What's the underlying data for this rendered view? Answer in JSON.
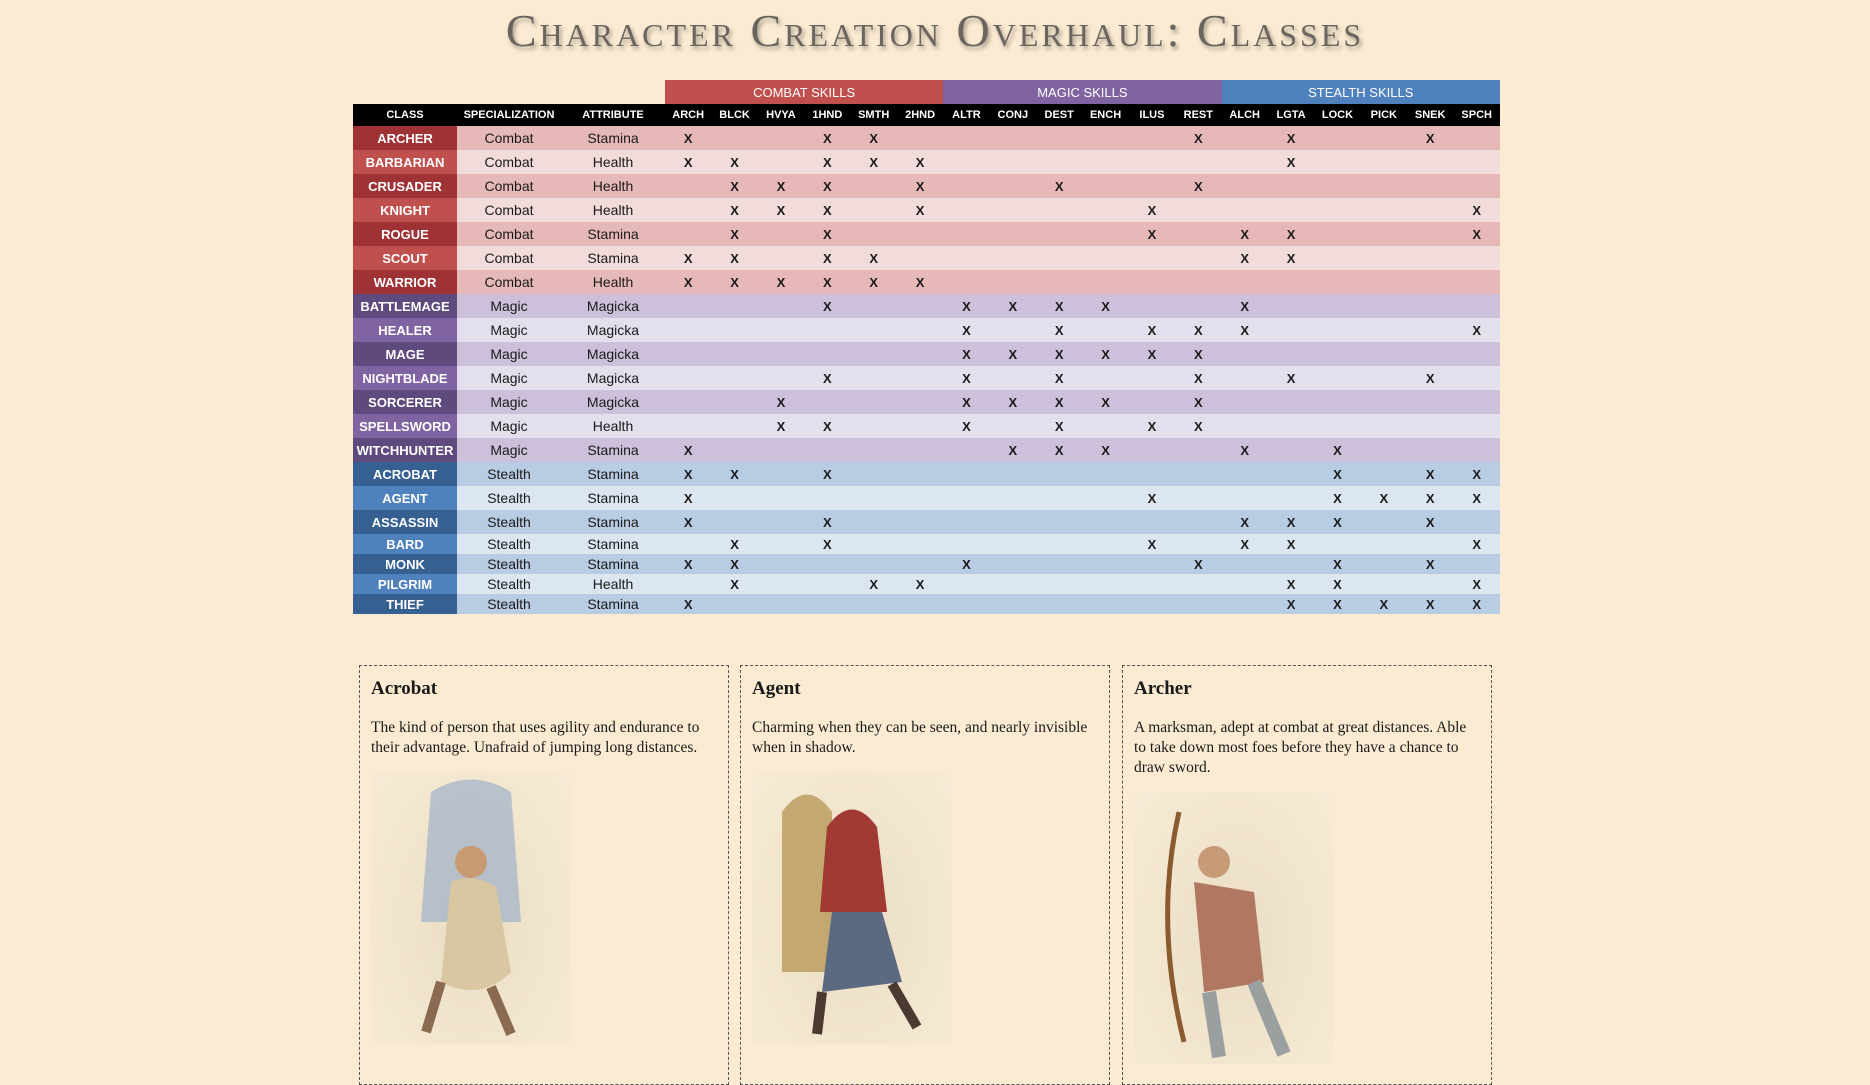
{
  "header": {
    "title": "Character Creation Overhaul: Classes"
  },
  "table": {
    "groups": [
      "COMBAT SKILLS",
      "MAGIC SKILLS",
      "STEALTH SKILLS"
    ],
    "columns": [
      "CLASS",
      "SPECIALIZATION",
      "ATTRIBUTE",
      "ARCH",
      "BLCK",
      "HVYA",
      "1HND",
      "SMTH",
      "2HND",
      "ALTR",
      "CONJ",
      "DEST",
      "ENCH",
      "ILUS",
      "REST",
      "ALCH",
      "LGTA",
      "LOCK",
      "PICK",
      "SNEK",
      "SPCH"
    ],
    "rows": [
      [
        "ARCHER",
        "Combat",
        "Stamina",
        "X",
        null,
        null,
        "X",
        "X",
        null,
        null,
        null,
        null,
        null,
        null,
        "X",
        null,
        "X",
        null,
        null,
        "X",
        null
      ],
      [
        "BARBARIAN",
        "Combat",
        "Health",
        "X",
        "X",
        null,
        "X",
        "X",
        "X",
        null,
        null,
        null,
        null,
        null,
        null,
        null,
        "X",
        null,
        null,
        null,
        null
      ],
      [
        "CRUSADER",
        "Combat",
        "Health",
        null,
        "X",
        "X",
        "X",
        null,
        "X",
        null,
        null,
        "X",
        null,
        null,
        "X",
        null,
        null,
        null,
        null,
        null,
        null
      ],
      [
        "KNIGHT",
        "Combat",
        "Health",
        null,
        "X",
        "X",
        "X",
        null,
        "X",
        null,
        null,
        null,
        null,
        "X",
        null,
        null,
        null,
        null,
        null,
        null,
        "X"
      ],
      [
        "ROGUE",
        "Combat",
        "Stamina",
        null,
        "X",
        null,
        "X",
        null,
        null,
        null,
        null,
        null,
        null,
        "X",
        null,
        "X",
        "X",
        null,
        null,
        null,
        "X"
      ],
      [
        "SCOUT",
        "Combat",
        "Stamina",
        "X",
        "X",
        null,
        "X",
        "X",
        null,
        null,
        null,
        null,
        null,
        null,
        null,
        "X",
        "X",
        null,
        null,
        null,
        null
      ],
      [
        "WARRIOR",
        "Combat",
        "Health",
        "X",
        "X",
        "X",
        "X",
        "X",
        "X",
        null,
        null,
        null,
        null,
        null,
        null,
        null,
        null,
        null,
        null,
        null,
        null
      ],
      [
        "BATTLEMAGE",
        "Magic",
        "Magicka",
        null,
        null,
        null,
        "X",
        null,
        null,
        "X",
        "X",
        "X",
        "X",
        null,
        null,
        "X",
        null,
        null,
        null,
        null,
        null
      ],
      [
        "HEALER",
        "Magic",
        "Magicka",
        null,
        null,
        null,
        null,
        null,
        null,
        "X",
        null,
        "X",
        null,
        "X",
        "X",
        "X",
        null,
        null,
        null,
        null,
        "X"
      ],
      [
        "MAGE",
        "Magic",
        "Magicka",
        null,
        null,
        null,
        null,
        null,
        null,
        "X",
        "X",
        "X",
        "X",
        "X",
        "X",
        null,
        null,
        null,
        null,
        null,
        null
      ],
      [
        "NIGHTBLADE",
        "Magic",
        "Magicka",
        null,
        null,
        null,
        "X",
        null,
        null,
        "X",
        null,
        "X",
        null,
        null,
        "X",
        null,
        "X",
        null,
        null,
        "X",
        null
      ],
      [
        "SORCERER",
        "Magic",
        "Magicka",
        null,
        null,
        "X",
        null,
        null,
        null,
        "X",
        "X",
        "X",
        "X",
        null,
        "X",
        null,
        null,
        null,
        null,
        null,
        null
      ],
      [
        "SPELLSWORD",
        "Magic",
        "Health",
        null,
        null,
        "X",
        "X",
        null,
        null,
        "X",
        null,
        "X",
        null,
        "X",
        "X",
        null,
        null,
        null,
        null,
        null,
        null
      ],
      [
        "WITCHHUNTER",
        "Magic",
        "Stamina",
        "X",
        null,
        null,
        null,
        null,
        null,
        null,
        "X",
        "X",
        "X",
        null,
        null,
        "X",
        null,
        "X",
        null,
        null,
        null
      ],
      [
        "ACROBAT",
        "Stealth",
        "Stamina",
        "X",
        "X",
        null,
        "X",
        null,
        null,
        null,
        null,
        null,
        null,
        null,
        null,
        null,
        null,
        "X",
        null,
        "X",
        "X"
      ],
      [
        "AGENT",
        "Stealth",
        "Stamina",
        "X",
        null,
        null,
        null,
        null,
        null,
        null,
        null,
        null,
        null,
        "X",
        null,
        null,
        null,
        "X",
        "X",
        "X",
        "X"
      ],
      [
        "ASSASSIN",
        "Stealth",
        "Stamina",
        "X",
        null,
        null,
        "X",
        null,
        null,
        null,
        null,
        null,
        null,
        null,
        null,
        "X",
        "X",
        "X",
        null,
        "X",
        null
      ],
      [
        "BARD",
        "Stealth",
        "Stamina",
        null,
        "X",
        null,
        "X",
        null,
        null,
        null,
        null,
        null,
        null,
        "X",
        null,
        "X",
        "X",
        null,
        null,
        null,
        "X"
      ],
      [
        "MONK",
        "Stealth",
        "Stamina",
        "X",
        "X",
        null,
        null,
        null,
        null,
        "X",
        null,
        null,
        null,
        null,
        "X",
        null,
        null,
        "X",
        null,
        "X",
        null
      ],
      [
        "PILGRIM",
        "Stealth",
        "Health",
        null,
        "X",
        null,
        null,
        "X",
        "X",
        null,
        null,
        null,
        null,
        null,
        null,
        null,
        "X",
        "X",
        null,
        null,
        "X"
      ],
      [
        "THIEF",
        "Stealth",
        "Stamina",
        "X",
        null,
        null,
        null,
        null,
        null,
        null,
        null,
        null,
        null,
        null,
        null,
        null,
        "X",
        "X",
        "X",
        "X",
        "X"
      ]
    ]
  },
  "cards": [
    {
      "title": "Acrobat",
      "description": "The kind of person that uses agility and endurance to their advantage. Unafraid of jumping long distances."
    },
    {
      "title": "Agent",
      "description": "Charming when they can be seen, and nearly invisible when in shadow."
    },
    {
      "title": "Archer",
      "description": "A marksman, adept at combat at great distances. Able to take down most foes before they have a chance to draw sword."
    }
  ]
}
